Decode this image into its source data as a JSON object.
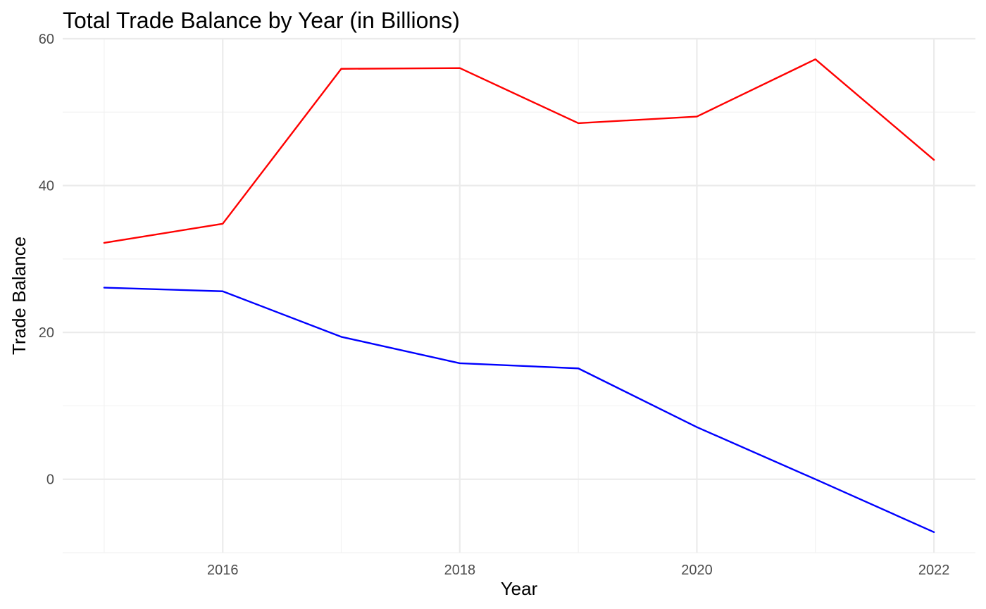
{
  "chart_data": {
    "type": "line",
    "title": "Total Trade Balance by Year (in Billions)",
    "xlabel": "Year",
    "ylabel": "Trade Balance",
    "x": [
      2015,
      2016,
      2017,
      2018,
      2019,
      2020,
      2021,
      2022
    ],
    "series": [
      {
        "color": "#ff0000",
        "values": [
          32.2,
          34.8,
          55.9,
          56.0,
          48.5,
          49.4,
          57.2,
          43.5
        ]
      },
      {
        "color": "#0000ff",
        "values": [
          26.1,
          25.6,
          19.4,
          15.8,
          15.1,
          7.1,
          0.0,
          -7.2
        ]
      }
    ],
    "xlim": [
      2014.65,
      2022.35
    ],
    "ylim": [
      -10,
      60
    ],
    "x_ticks": [
      2016,
      2018,
      2020,
      2022
    ],
    "x_tick_labels": [
      "2016",
      "2018",
      "2020",
      "2022"
    ],
    "y_ticks": [
      0,
      20,
      40,
      60
    ],
    "y_tick_labels": [
      "0",
      "20",
      "40",
      "60"
    ],
    "grid": true,
    "legend": "none"
  }
}
